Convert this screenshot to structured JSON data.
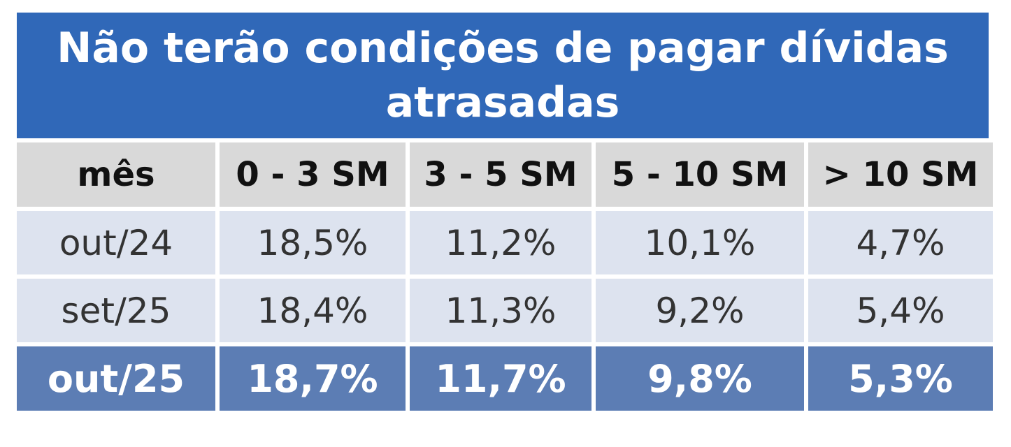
{
  "chart_data": {
    "type": "table",
    "title": "Não terão condições de pagar dívidas atrasadas",
    "columns": [
      "mês",
      "0 - 3 SM",
      "3 - 5 SM",
      "5 - 10 SM",
      "> 10 SM"
    ],
    "rows": [
      {
        "mes": "out/24",
        "values": [
          "18,5%",
          "11,2%",
          "10,1%",
          "4,7%"
        ]
      },
      {
        "mes": "set/25",
        "values": [
          "18,4%",
          "11,3%",
          "9,2%",
          "5,4%"
        ]
      },
      {
        "mes": "out/25",
        "values": [
          "18,7%",
          "11,7%",
          "9,8%",
          "5,3%"
        ]
      }
    ],
    "highlighted_row": "out/25"
  },
  "colors": {
    "title_background": "#3068b8",
    "header_background": "#d9d9d9",
    "row_background": "#dde3ef",
    "highlight_background": "#5c7db4",
    "highlight_text": "#ffffff"
  }
}
